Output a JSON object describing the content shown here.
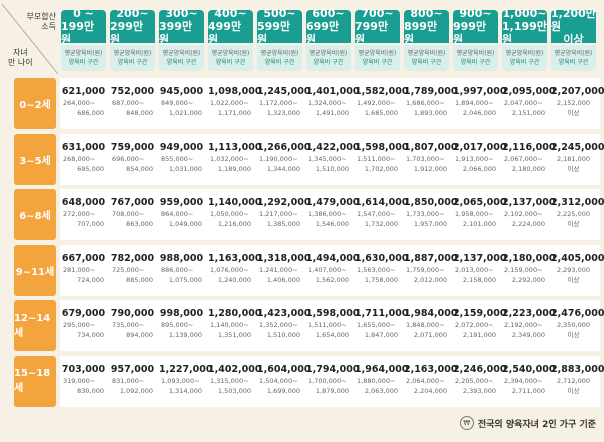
{
  "corner": {
    "top_label": [
      "부모합산",
      "소득"
    ],
    "bottom_label": [
      "자녀",
      "만 나이"
    ]
  },
  "income_brackets": [
    [
      "0 ~",
      "199만 원"
    ],
    [
      "200~",
      "299만 원"
    ],
    [
      "300~",
      "399만 원"
    ],
    [
      "400~",
      "499만 원"
    ],
    [
      "500~",
      "599만 원"
    ],
    [
      "600~",
      "699만 원"
    ],
    [
      "700~",
      "799만 원"
    ],
    [
      "800~",
      "899만 원"
    ],
    [
      "900~",
      "999만 원"
    ],
    [
      "1,000~",
      "1,199만 원"
    ],
    [
      "1,200만 원",
      "이상"
    ]
  ],
  "subheader": {
    "line1": "평균양육비(원)",
    "line2": "양육비 구간"
  },
  "rows": [
    {
      "age": "0~2세",
      "cells": [
        [
          "621,000",
          "264,000~",
          "686,000"
        ],
        [
          "752,000",
          "687,000~",
          "848,000"
        ],
        [
          "945,000",
          "849,000~",
          "1,021,000"
        ],
        [
          "1,098,000",
          "1,022,000~",
          "1,171,000"
        ],
        [
          "1,245,000",
          "1,172,000~",
          "1,323,000"
        ],
        [
          "1,401,000",
          "1,324,000~",
          "1,491,000"
        ],
        [
          "1,582,000",
          "1,492,000~",
          "1,685,000"
        ],
        [
          "1,789,000",
          "1,686,000~",
          "1,893,000"
        ],
        [
          "1,997,000",
          "1,894,000~",
          "2,046,000"
        ],
        [
          "2,095,000",
          "2,047,000~",
          "2,151,000"
        ],
        [
          "2,207,000",
          "2,152,000",
          "이상"
        ]
      ]
    },
    {
      "age": "3~5세",
      "cells": [
        [
          "631,000",
          "268,000~",
          "695,000"
        ],
        [
          "759,000",
          "696,000~",
          "854,000"
        ],
        [
          "949,000",
          "855,000~",
          "1,031,000"
        ],
        [
          "1,113,000",
          "1,032,000~",
          "1,189,000"
        ],
        [
          "1,266,000",
          "1,190,000~",
          "1,344,000"
        ],
        [
          "1,422,000",
          "1,345,000~",
          "1,510,000"
        ],
        [
          "1,598,000",
          "1,511,000~",
          "1,702,000"
        ],
        [
          "1,807,000",
          "1,703,000~",
          "1,912,000"
        ],
        [
          "2,017,000",
          "1,913,000~",
          "2,066,000"
        ],
        [
          "2,116,000",
          "2,067,000~",
          "2,180,000"
        ],
        [
          "2,245,000",
          "2,181,000",
          "이상"
        ]
      ]
    },
    {
      "age": "6~8세",
      "cells": [
        [
          "648,000",
          "272,000~",
          "707,000"
        ],
        [
          "767,000",
          "708,000~",
          "863,000"
        ],
        [
          "959,000",
          "864,000~",
          "1,049,000"
        ],
        [
          "1,140,000",
          "1,050,000~",
          "1,216,000"
        ],
        [
          "1,292,000",
          "1,217,000~",
          "1,385,000"
        ],
        [
          "1,479,000",
          "1,386,000~",
          "1,546,000"
        ],
        [
          "1,614,000",
          "1,547,000~",
          "1,732,000"
        ],
        [
          "1,850,000",
          "1,733,000~",
          "1,957,000"
        ],
        [
          "2,065,000",
          "1,958,000~",
          "2,101,000"
        ],
        [
          "2,137,000",
          "2,102,000~",
          "2,224,000"
        ],
        [
          "2,312,000",
          "2,225,000",
          "이상"
        ]
      ]
    },
    {
      "age": "9~11세",
      "cells": [
        [
          "667,000",
          "281,000~",
          "724,000"
        ],
        [
          "782,000",
          "725,000~",
          "885,000"
        ],
        [
          "988,000",
          "886,000~",
          "1,075,000"
        ],
        [
          "1,163,000",
          "1,076,000~",
          "1,240,000"
        ],
        [
          "1,318,000",
          "1,241,000~",
          "1,406,000"
        ],
        [
          "1,494,000",
          "1,407,000~",
          "1,562,000"
        ],
        [
          "1,630,000",
          "1,563,000~",
          "1,758,000"
        ],
        [
          "1,887,000",
          "1,759,000~",
          "2,012,000"
        ],
        [
          "2,137,000",
          "2,013,000~",
          "2,158,000"
        ],
        [
          "2,180,000",
          "2,159,000~",
          "2,292,000"
        ],
        [
          "2,405,000",
          "2,293,000",
          "이상"
        ]
      ]
    },
    {
      "age": "12~14세",
      "cells": [
        [
          "679,000",
          "295,000~",
          "734,000"
        ],
        [
          "790,000",
          "735,000~",
          "894,000"
        ],
        [
          "998,000",
          "895,000~",
          "1,139,000"
        ],
        [
          "1,280,000",
          "1,140,000~",
          "1,351,000"
        ],
        [
          "1,423,000",
          "1,352,000~",
          "1,510,000"
        ],
        [
          "1,598,000",
          "1,511,000~",
          "1,654,000"
        ],
        [
          "1,711,000",
          "1,655,000~",
          "1,847,000"
        ],
        [
          "1,984,000",
          "1,848,000~",
          "2,071,000"
        ],
        [
          "2,159,000",
          "2,072,000~",
          "2,191,000"
        ],
        [
          "2,223,000",
          "2,192,000~",
          "2,349,000"
        ],
        [
          "2,476,000",
          "2,350,000",
          "이상"
        ]
      ]
    },
    {
      "age": "15~18세",
      "cells": [
        [
          "703,000",
          "319,000~",
          "830,000"
        ],
        [
          "957,000",
          "831,000~",
          "1,092,000"
        ],
        [
          "1,227,000",
          "1,093,000~",
          "1,314,000"
        ],
        [
          "1,402,000",
          "1,315,000~",
          "1,503,000"
        ],
        [
          "1,604,000",
          "1,504,000~",
          "1,699,000"
        ],
        [
          "1,794,000",
          "1,700,000~",
          "1,879,000"
        ],
        [
          "1,964,000",
          "1,880,000~",
          "2,063,000"
        ],
        [
          "2,163,000",
          "2,064,000~",
          "2,204,000"
        ],
        [
          "2,246,000",
          "2,205,000~",
          "2,393,000"
        ],
        [
          "2,540,000",
          "2,394,000~",
          "2,711,000"
        ],
        [
          "2,883,000",
          "2,712,000",
          "이상"
        ]
      ]
    }
  ],
  "footnote": "전국의 양육자녀 2인 가구 기준",
  "colors": {
    "header": "#1b9e92",
    "subheader": "#d9efe9",
    "age": "#f3a43c",
    "background": "#f6f1e4"
  }
}
